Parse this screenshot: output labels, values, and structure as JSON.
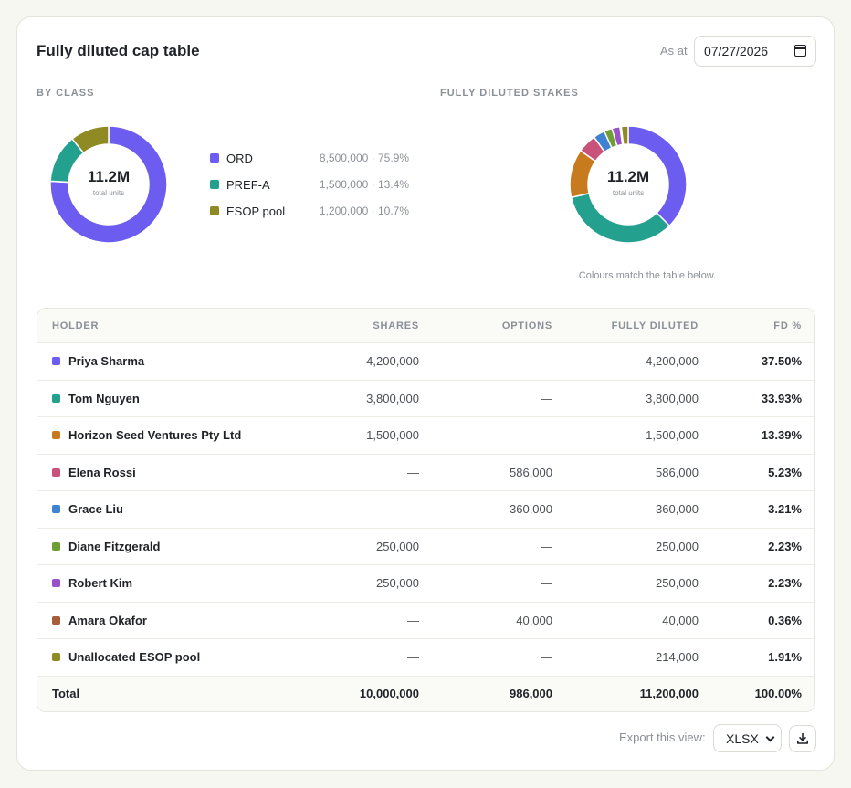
{
  "header": {
    "title": "Fully diluted cap table",
    "as_at_label": "As at",
    "date_value": "07/27/2026"
  },
  "by_class": {
    "label": "BY CLASS",
    "center_value": "11.2M",
    "center_caption": "total units",
    "items": [
      {
        "name": "ORD",
        "value": "8,500,000 · 75.9%",
        "color": "#6c5cf0"
      },
      {
        "name": "PREF-A",
        "value": "1,500,000 · 13.4%",
        "color": "#23a08e"
      },
      {
        "name": "ESOP pool",
        "value": "1,200,000 · 10.7%",
        "color": "#8f8a23"
      }
    ]
  },
  "fd_stakes": {
    "label": "FULLY DILUTED STAKES",
    "center_value": "11.2M",
    "center_caption": "total units",
    "caption": "Colours match the table below."
  },
  "chart_data": [
    {
      "type": "pie",
      "title": "BY CLASS",
      "categories": [
        "ORD",
        "PREF-A",
        "ESOP pool"
      ],
      "values": [
        8500000,
        1500000,
        1200000
      ],
      "colors": [
        "#6c5cf0",
        "#23a08e",
        "#8f8a23"
      ]
    },
    {
      "type": "pie",
      "title": "FULLY DILUTED STAKES",
      "categories": [
        "Priya Sharma",
        "Tom Nguyen",
        "Horizon Seed Ventures Pty Ltd",
        "Elena Rossi",
        "Grace Liu",
        "Diane Fitzgerald",
        "Robert Kim",
        "Amara Okafor",
        "Unallocated ESOP pool"
      ],
      "values": [
        4200000,
        3800000,
        1500000,
        586000,
        360000,
        250000,
        250000,
        40000,
        214000
      ],
      "colors": [
        "#6c5cf0",
        "#23a08e",
        "#c87a1e",
        "#c8527a",
        "#3f82d0",
        "#6f9e34",
        "#9a52c8",
        "#a85d3a",
        "#8f8a23"
      ]
    }
  ],
  "table": {
    "columns": [
      "HOLDER",
      "SHARES",
      "OPTIONS",
      "FULLY DILUTED",
      "FD %"
    ],
    "rows": [
      {
        "holder": "Priya Sharma",
        "shares": "4,200,000",
        "options": "—",
        "fd": "4,200,000",
        "pct": "37.50%",
        "color": "#6c5cf0"
      },
      {
        "holder": "Tom Nguyen",
        "shares": "3,800,000",
        "options": "—",
        "fd": "3,800,000",
        "pct": "33.93%",
        "color": "#23a08e"
      },
      {
        "holder": "Horizon Seed Ventures Pty Ltd",
        "shares": "1,500,000",
        "options": "—",
        "fd": "1,500,000",
        "pct": "13.39%",
        "color": "#c87a1e"
      },
      {
        "holder": "Elena Rossi",
        "shares": "—",
        "options": "586,000",
        "fd": "586,000",
        "pct": "5.23%",
        "color": "#c8527a"
      },
      {
        "holder": "Grace Liu",
        "shares": "—",
        "options": "360,000",
        "fd": "360,000",
        "pct": "3.21%",
        "color": "#3f82d0"
      },
      {
        "holder": "Diane Fitzgerald",
        "shares": "250,000",
        "options": "—",
        "fd": "250,000",
        "pct": "2.23%",
        "color": "#6f9e34"
      },
      {
        "holder": "Robert Kim",
        "shares": "250,000",
        "options": "—",
        "fd": "250,000",
        "pct": "2.23%",
        "color": "#9a52c8"
      },
      {
        "holder": "Amara Okafor",
        "shares": "—",
        "options": "40,000",
        "fd": "40,000",
        "pct": "0.36%",
        "color": "#a85d3a"
      },
      {
        "holder": "Unallocated ESOP pool",
        "shares": "—",
        "options": "—",
        "fd": "214,000",
        "pct": "1.91%",
        "color": "#8f8a23"
      }
    ],
    "total": {
      "holder": "Total",
      "shares": "10,000,000",
      "options": "986,000",
      "fd": "11,200,000",
      "pct": "100.00%"
    }
  },
  "export": {
    "label": "Export this view:",
    "format": "XLSX",
    "download_icon": "download-icon"
  }
}
